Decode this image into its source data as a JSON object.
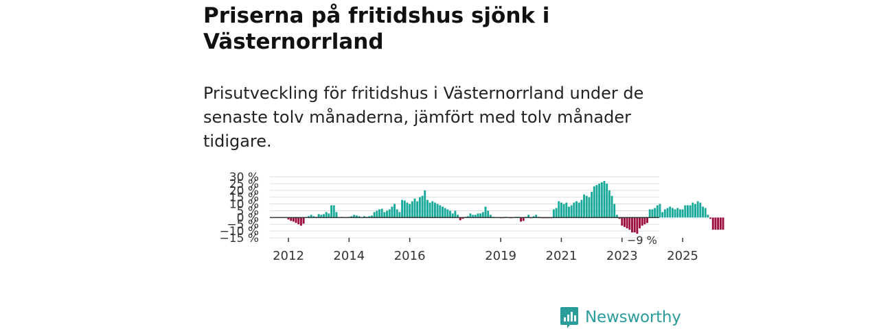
{
  "header": {
    "title": "Priserna på fritidshus sjönk i Västernorrland",
    "subtitle": "Prisutveckling för fritidshus i Västernorrland under de senaste tolv månaderna, jämfört med tolv månader tidigare."
  },
  "logo": {
    "text": "Newsworthy",
    "icon": "newsworthy-chart-icon",
    "color": "#2a9d9a"
  },
  "colors": {
    "positive": "#18a99a",
    "negative": "#9e0d3e",
    "grid": "#dddddd",
    "zero": "#333333",
    "axis_text": "#333333"
  },
  "chart_data": {
    "type": "bar",
    "title": "Priserna på fritidshus sjönk i Västernorrland",
    "subtitle": "Prisutveckling för fritidshus i Västernorrland under de senaste tolv månaderna, jämfört med tolv månader tidigare.",
    "xlabel": "",
    "ylabel": "",
    "unit": "%",
    "ylim": [
      -15,
      30
    ],
    "yticks": [
      {
        "value": 30,
        "label": "30 %"
      },
      {
        "value": 25,
        "label": "25 %"
      },
      {
        "value": 20,
        "label": "20 %"
      },
      {
        "value": 15,
        "label": "15 %"
      },
      {
        "value": 10,
        "label": "10 %"
      },
      {
        "value": 5,
        "label": "5 %"
      },
      {
        "value": 0,
        "label": "0 %"
      },
      {
        "value": -5,
        "label": "−5 %"
      },
      {
        "value": -10,
        "label": "−10 %"
      },
      {
        "value": -15,
        "label": "−15 %"
      }
    ],
    "xticks": [
      {
        "year": 2012,
        "label": "2012"
      },
      {
        "year": 2014,
        "label": "2014"
      },
      {
        "year": 2016,
        "label": "2016"
      },
      {
        "year": 2019,
        "label": "2019"
      },
      {
        "year": 2021,
        "label": "2021"
      },
      {
        "year": 2023,
        "label": "2023"
      },
      {
        "year": 2025,
        "label": "2025"
      }
    ],
    "start": {
      "year": 2012,
      "month": 1
    },
    "end_label": "−9 %",
    "grid": true,
    "series": [
      {
        "name": "Prisutveckling",
        "values": [
          -1.5,
          -2.5,
          -3,
          -4,
          -5,
          -6,
          -4.5,
          null,
          1,
          2,
          1,
          0.5,
          2.5,
          2,
          2.5,
          4,
          3,
          9,
          9,
          4,
          null,
          0.5,
          null,
          null,
          0.5,
          1,
          2,
          1.5,
          1,
          null,
          1,
          0.5,
          1,
          1.5,
          4,
          5,
          6,
          6.5,
          4,
          5,
          6,
          8,
          10,
          6,
          4,
          13,
          12.5,
          11,
          10,
          12,
          14,
          12,
          15,
          16,
          20,
          13,
          11,
          12,
          11,
          10,
          9,
          8,
          7,
          6,
          5,
          3,
          5,
          2,
          -2,
          -1,
          0.5,
          1,
          3,
          2,
          2,
          3,
          3,
          4,
          8,
          5,
          2,
          0.5,
          null,
          null,
          -0.5,
          -0.5,
          0.5,
          null,
          -0.5,
          null,
          0.5,
          0.5,
          -3,
          -2.5,
          0.5,
          2,
          -0.5,
          1,
          2,
          0.5,
          -0.5,
          -0.5,
          -0.5,
          -0.5,
          -0.5,
          6,
          7,
          12,
          11,
          10,
          11,
          8,
          9,
          11,
          12,
          11,
          13,
          17,
          16,
          15,
          19,
          23,
          24,
          25,
          26,
          27,
          25,
          20,
          16,
          10,
          2,
          -1,
          -6,
          -7,
          -8,
          -9,
          -11,
          -11,
          -12,
          -8,
          -6,
          -5,
          -4,
          6,
          6,
          7,
          9,
          10,
          4,
          6,
          7,
          8,
          7,
          6,
          7,
          6,
          6,
          9,
          9,
          9,
          11,
          10,
          12,
          11,
          8,
          7,
          2,
          -1,
          -9,
          -9,
          -9,
          -9,
          -9
        ]
      }
    ]
  }
}
